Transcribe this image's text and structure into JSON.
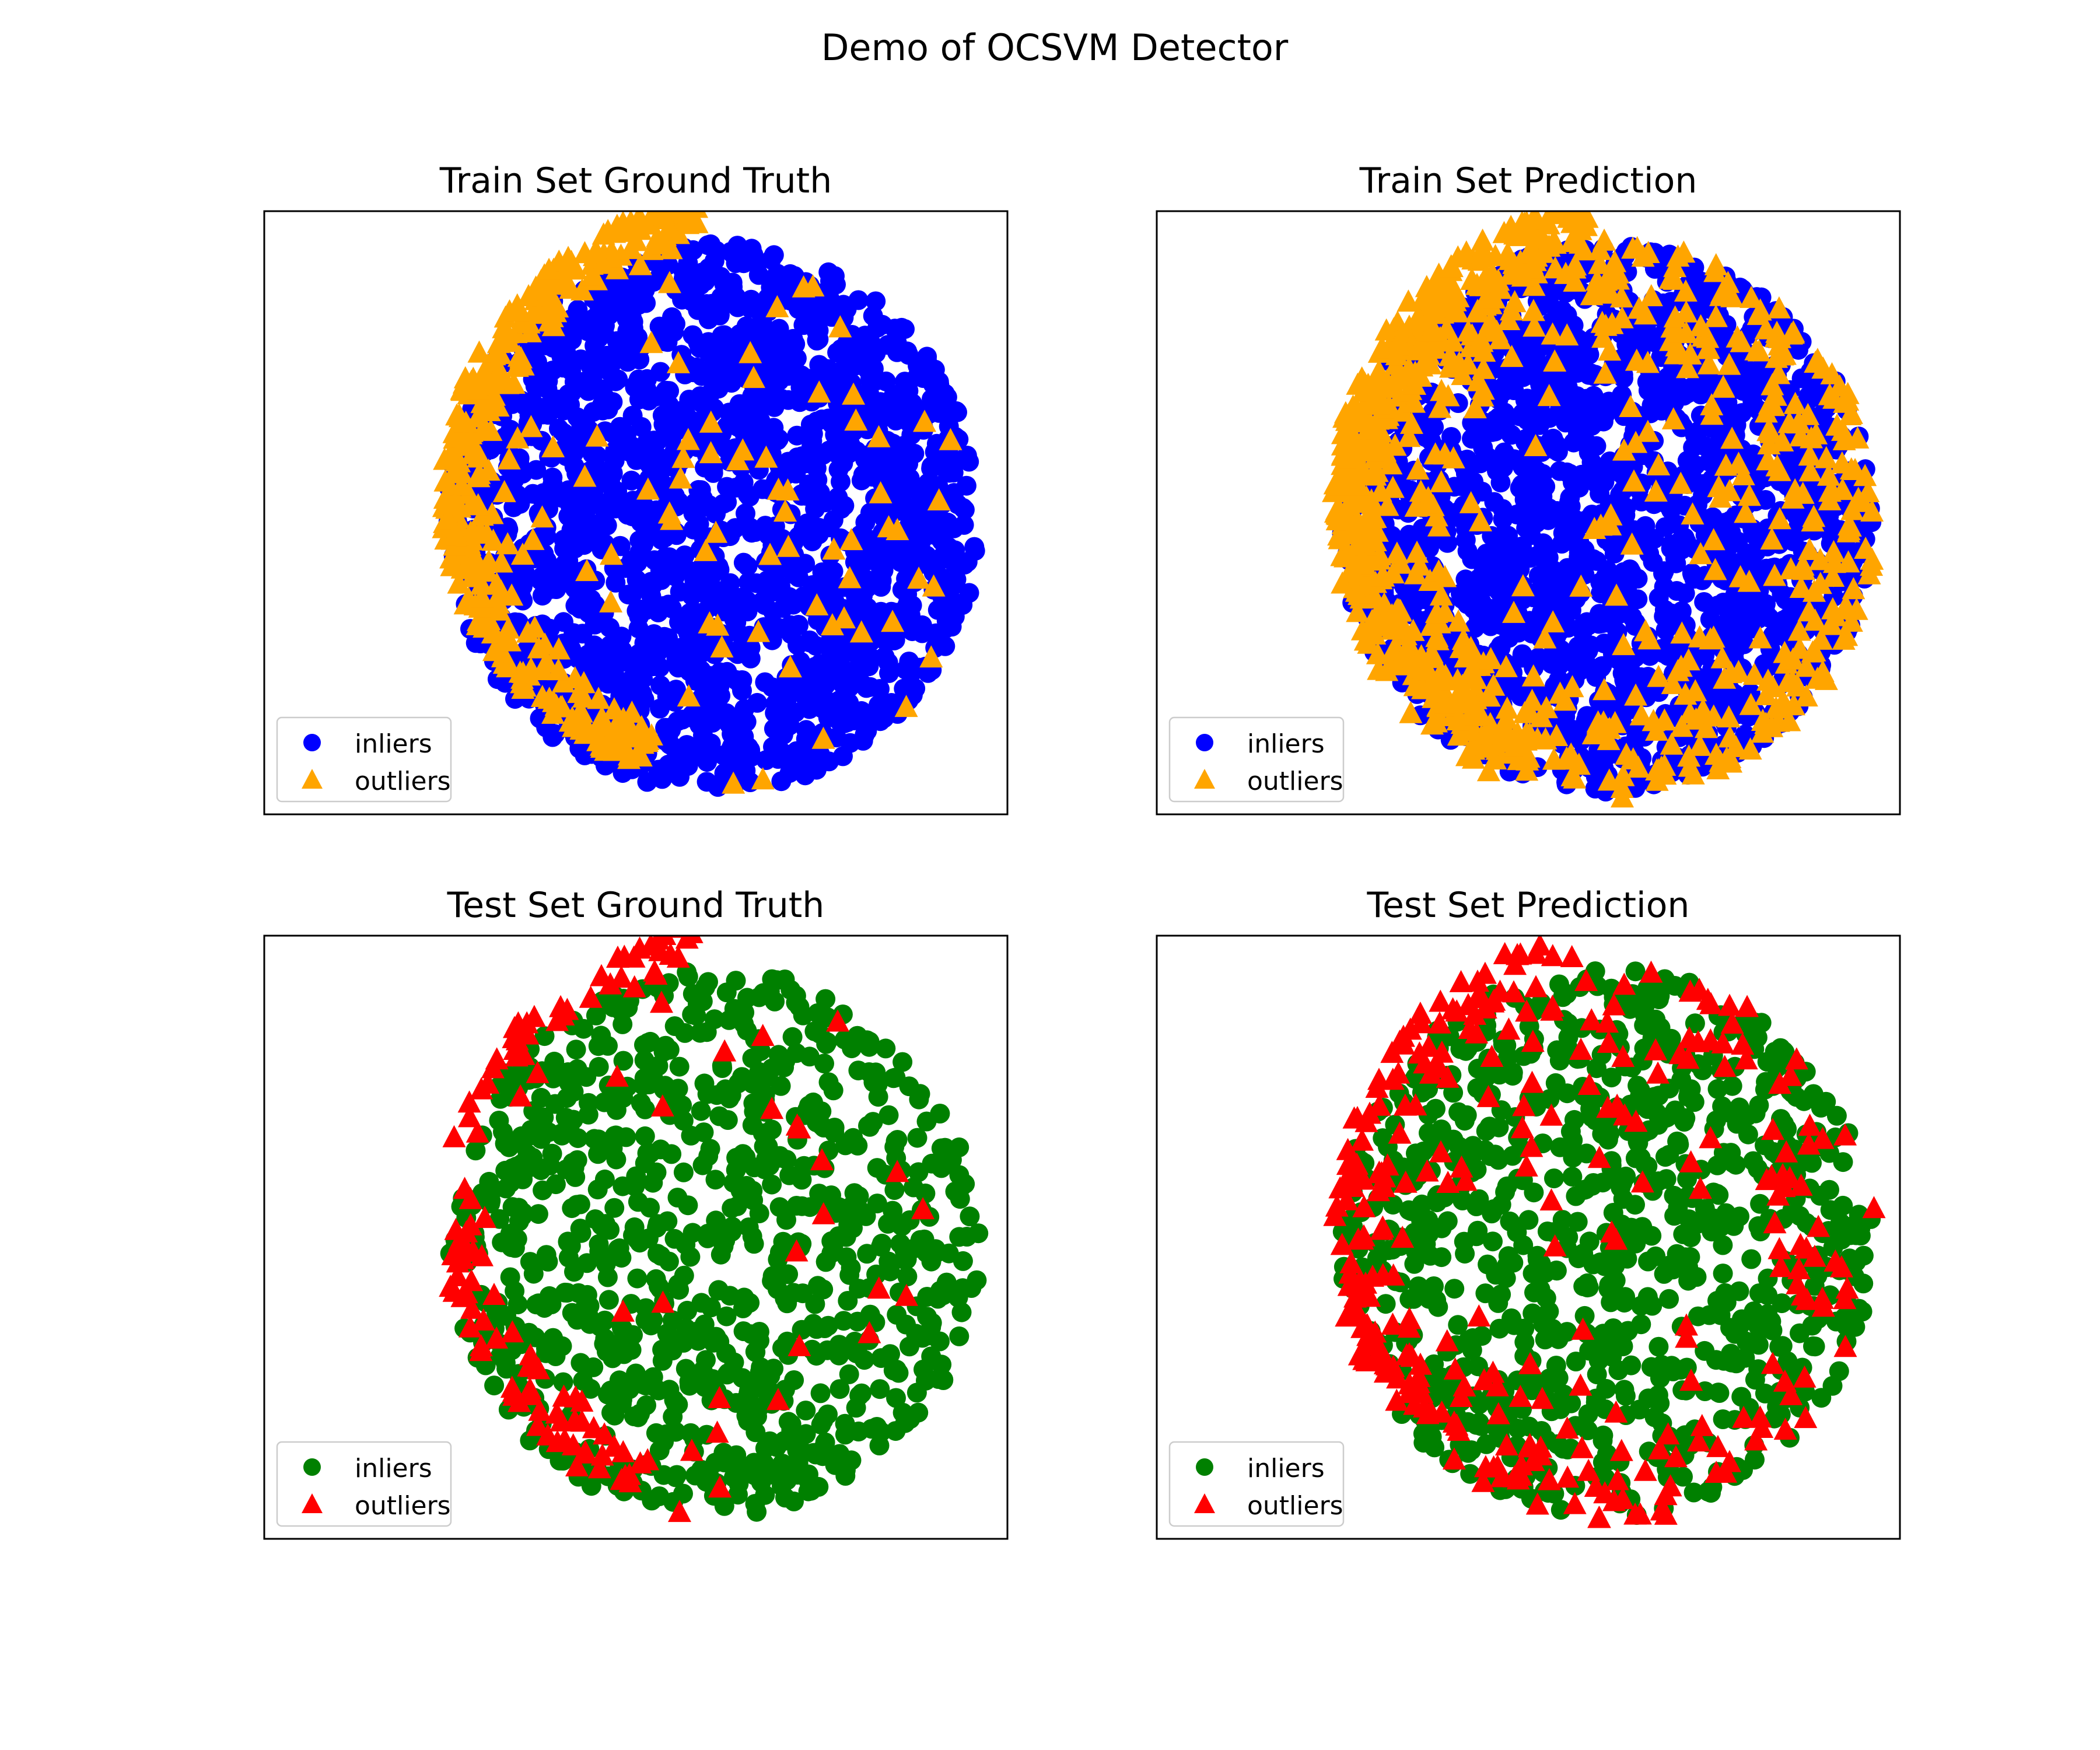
{
  "figure": {
    "title": "Demo of OCSVM Detector"
  },
  "colors": {
    "train_inlier": "#0000ff",
    "train_outlier": "#ffa500",
    "test_inlier": "#008000",
    "test_outlier": "#ff0000",
    "axes_frame": "#000000",
    "legend_frame": "#cccccc"
  },
  "chart_data": [
    {
      "type": "scatter",
      "title": "Train Set Ground Truth",
      "xlabel": "",
      "ylabel": "",
      "axes_visible": false,
      "grid": false,
      "legend_placement": "lower-left",
      "marker_colors": {
        "inliers": "#0000ff",
        "outliers": "#ffa500"
      },
      "markers": {
        "inliers": "circle",
        "outliers": "triangle"
      },
      "legend": [
        "inliers",
        "outliers"
      ],
      "shape_regions": {
        "inliers": {
          "cx": 0.0,
          "cy": 0.0,
          "rx": 0.95,
          "ry": 1.0,
          "count": 1800
        },
        "outliers": [
          {
            "kind": "arc",
            "cx": 0.25,
            "cy": 0.1,
            "r_in": 1.18,
            "r_out": 1.42,
            "a_from": 105,
            "a_to": 245,
            "count": 320
          },
          {
            "kind": "scatter",
            "cx": 0.0,
            "cy": 0.0,
            "rx": 0.95,
            "ry": 1.0,
            "count": 85
          }
        ]
      },
      "xlim": [
        -1.6,
        1.05
      ],
      "ylim": [
        -1.08,
        1.12
      ]
    },
    {
      "type": "scatter",
      "title": "Train Set Prediction",
      "xlabel": "",
      "ylabel": "",
      "axes_visible": false,
      "grid": false,
      "legend_placement": "lower-left",
      "marker_colors": {
        "inliers": "#0000ff",
        "outliers": "#ffa500"
      },
      "markers": {
        "inliers": "circle",
        "outliers": "triangle"
      },
      "legend": [
        "inliers",
        "outliers"
      ],
      "shape_regions": {
        "inliers": {
          "cx": 0.0,
          "cy": 0.0,
          "rx": 0.95,
          "ry": 1.0,
          "count": 1800
        },
        "outliers": [
          {
            "kind": "arc",
            "cx": 0.25,
            "cy": 0.1,
            "r_in": 1.18,
            "r_out": 1.42,
            "a_from": 105,
            "a_to": 245,
            "count": 320
          },
          {
            "kind": "ring",
            "cx": 0.0,
            "cy": 0.0,
            "rx": 0.95,
            "ry": 1.0,
            "r_in": 0.55,
            "r_out": 1.02,
            "count": 420
          },
          {
            "kind": "scatter",
            "cx": 0.0,
            "cy": 0.0,
            "rx": 0.95,
            "ry": 1.0,
            "count": 140
          }
        ]
      },
      "xlim": [
        -1.6,
        1.05
      ],
      "ylim": [
        -1.08,
        1.12
      ]
    },
    {
      "type": "scatter",
      "title": "Test Set Ground Truth",
      "xlabel": "",
      "ylabel": "",
      "axes_visible": false,
      "grid": false,
      "legend_placement": "lower-left",
      "marker_colors": {
        "inliers": "#008000",
        "outliers": "#ff0000"
      },
      "markers": {
        "inliers": "circle",
        "outliers": "triangle"
      },
      "legend": [
        "inliers",
        "outliers"
      ],
      "shape_regions": {
        "inliers": {
          "cx": 0.0,
          "cy": 0.0,
          "rx": 0.95,
          "ry": 1.0,
          "count": 900
        },
        "outliers": [
          {
            "kind": "arc",
            "cx": 0.25,
            "cy": 0.1,
            "r_in": 1.18,
            "r_out": 1.42,
            "a_from": 105,
            "a_to": 245,
            "count": 110
          },
          {
            "kind": "scatter",
            "cx": 0.0,
            "cy": 0.0,
            "rx": 0.95,
            "ry": 1.0,
            "count": 30
          }
        ]
      },
      "xlim": [
        -1.6,
        1.05
      ],
      "ylim": [
        -1.08,
        1.12
      ]
    },
    {
      "type": "scatter",
      "title": "Test Set Prediction",
      "xlabel": "",
      "ylabel": "",
      "axes_visible": false,
      "grid": false,
      "legend_placement": "lower-left",
      "marker_colors": {
        "inliers": "#008000",
        "outliers": "#ff0000"
      },
      "markers": {
        "inliers": "circle",
        "outliers": "triangle"
      },
      "legend": [
        "inliers",
        "outliers"
      ],
      "shape_regions": {
        "inliers": {
          "cx": 0.0,
          "cy": 0.0,
          "rx": 0.95,
          "ry": 1.0,
          "count": 900
        },
        "outliers": [
          {
            "kind": "arc",
            "cx": 0.25,
            "cy": 0.1,
            "r_in": 1.18,
            "r_out": 1.42,
            "a_from": 105,
            "a_to": 245,
            "count": 110
          },
          {
            "kind": "ring",
            "cx": 0.0,
            "cy": 0.0,
            "rx": 0.95,
            "ry": 1.0,
            "r_in": 0.55,
            "r_out": 1.02,
            "count": 150
          },
          {
            "kind": "scatter",
            "cx": 0.0,
            "cy": 0.0,
            "rx": 0.95,
            "ry": 1.0,
            "count": 50
          }
        ]
      },
      "xlim": [
        -1.6,
        1.05
      ],
      "ylim": [
        -1.08,
        1.12
      ]
    }
  ]
}
